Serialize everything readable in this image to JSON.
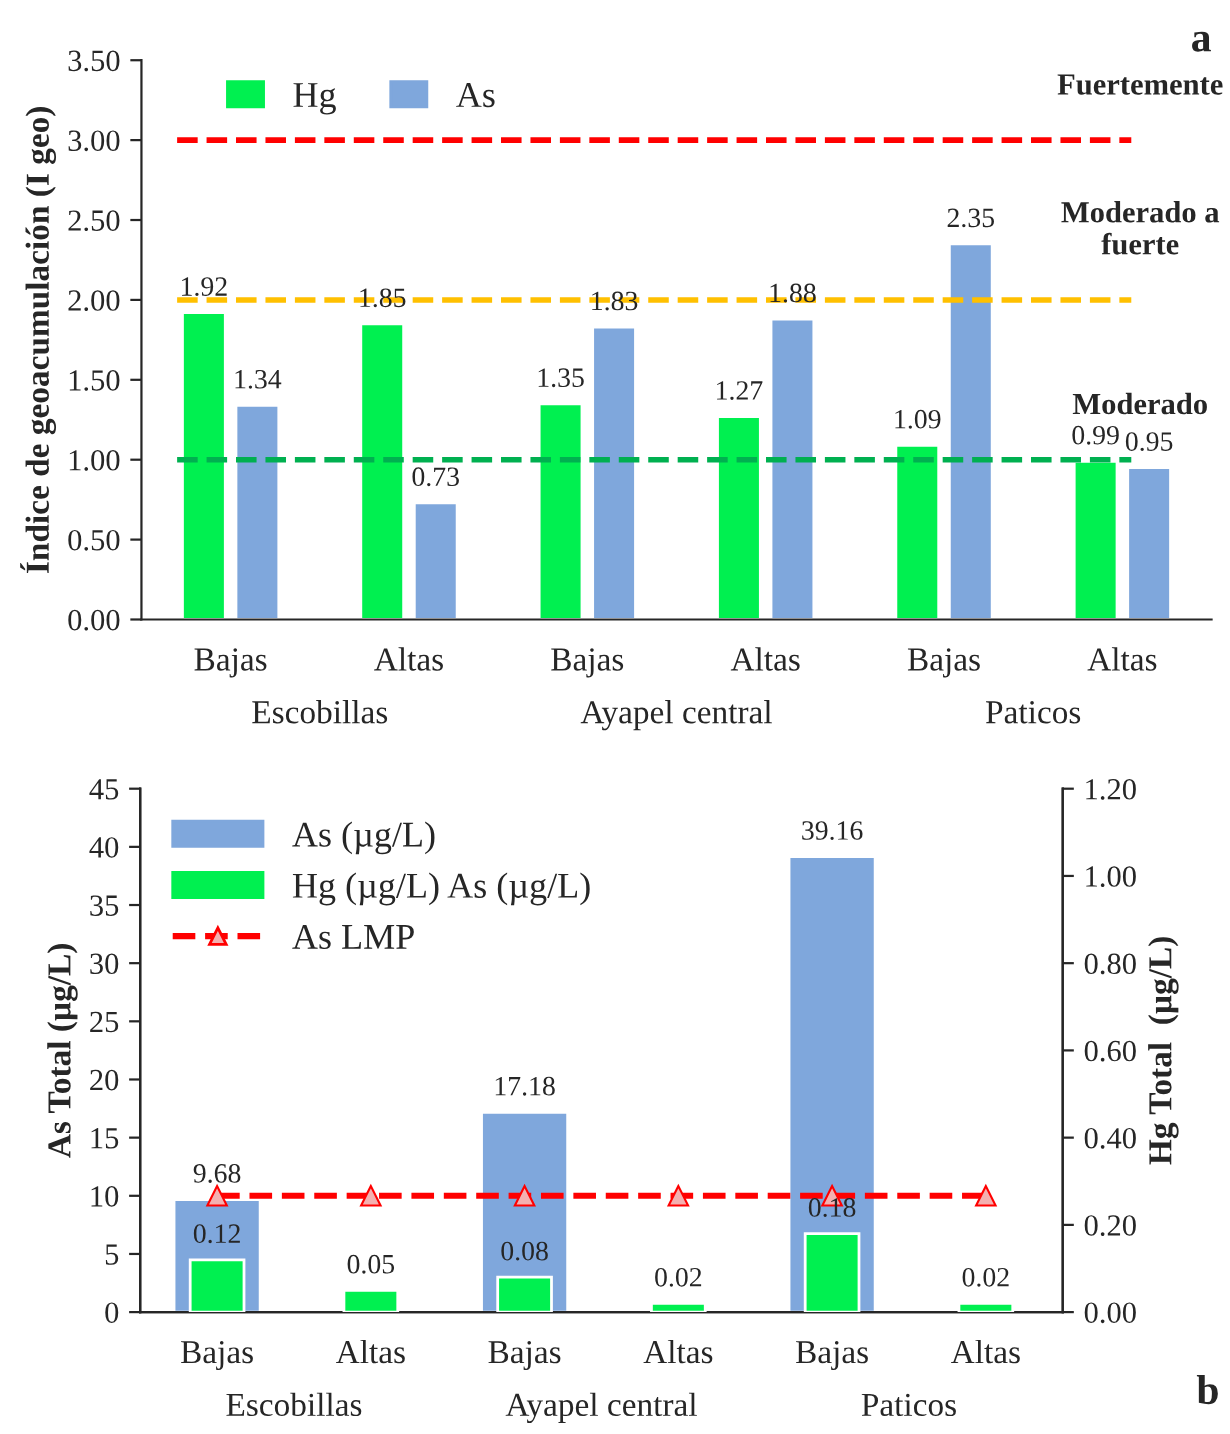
{
  "chart_data": [
    {
      "type": "bar",
      "ylabel": "Índice de geoacumulación (I geo)",
      "categories": [
        "Bajas",
        "Altas",
        "Bajas",
        "Altas",
        "Bajas",
        "Altas"
      ],
      "series": [
        {
          "name": "Hg",
          "color": "#00f050",
          "values": [
            1.92,
            1.85,
            1.35,
            1.27,
            1.09,
            0.99
          ]
        },
        {
          "name": "As",
          "color": "#7fa7dc",
          "values": [
            1.34,
            0.73,
            1.83,
            1.88,
            2.35,
            0.95
          ]
        }
      ],
      "ylim": [
        0,
        3.5
      ],
      "yticks": [
        {
          "value": 0,
          "label": "0.00"
        },
        {
          "value": 0.5,
          "label": "0.50"
        },
        {
          "value": 1,
          "label": "1.00"
        },
        {
          "value": 1.5,
          "label": "1.50"
        },
        {
          "value": 2,
          "label": "2.00"
        },
        {
          "value": 2.5,
          "label": "2.50"
        },
        {
          "value": 3,
          "label": "3.00"
        },
        {
          "value": 3.5,
          "label": "3.50"
        }
      ],
      "ref_lines": [
        {
          "axis": "y",
          "value": 3,
          "label": "Fuertemente",
          "color": "#ff0000",
          "line_style": "dashed"
        },
        {
          "axis": "y",
          "value": 2,
          "label": "Moderado a fuerte",
          "color": "#ffc000",
          "line_style": "dashed"
        },
        {
          "axis": "y",
          "value": 1,
          "label": "Moderado",
          "color": "#00b050",
          "line_style": "dashed"
        }
      ],
      "data_labels": true,
      "legend": "top left",
      "grid": false,
      "annotations": [
        "Escobillas",
        "Ayapel central",
        "Paticos",
        "a"
      ]
    },
    {
      "type": "bar",
      "ylabel": "As Total (µg/L)",
      "y2label": "Hg Total  (µg/L)",
      "categories": [
        "Bajas",
        "Altas",
        "Bajas",
        "Altas",
        "Bajas",
        "Altas"
      ],
      "series": [
        {
          "name": "As (µg/L)",
          "color": "#7fa7dc",
          "values": [
            9.68,
            null,
            17.18,
            null,
            39.16,
            null
          ],
          "value_labels": [
            "9.68",
            null,
            "17.18",
            null,
            "39.16",
            null
          ]
        },
        {
          "name": "Hg (µg/L) As (µg/L)",
          "color": "#00f050",
          "axis": "y2",
          "values": [
            0.12,
            0.05,
            0.08,
            0.02,
            0.18,
            0.02
          ],
          "value_labels": [
            "0.12",
            "0.05",
            "0.08",
            "0.02",
            "0.18",
            "0.02"
          ]
        },
        {
          "name": "As LMP",
          "type": "line",
          "color": "#ff0000",
          "marker": "triangle",
          "line_style": "dashed",
          "values": [
            10,
            10,
            10,
            10,
            10,
            10
          ]
        }
      ],
      "ylim": [
        0,
        45
      ],
      "yticks": [
        0,
        5,
        10,
        15,
        20,
        25,
        30,
        35,
        40,
        45
      ],
      "y2lim": [
        0,
        1.2
      ],
      "y2ticks": [
        {
          "value": 0,
          "label": "0.00"
        },
        {
          "value": 0.2,
          "label": "0.20"
        },
        {
          "value": 0.4,
          "label": "0.40"
        },
        {
          "value": 0.6,
          "label": "0.60"
        },
        {
          "value": 0.8,
          "label": "0.80"
        },
        {
          "value": 1.0,
          "label": "1.00"
        },
        {
          "value": 1.2,
          "label": "1.20"
        }
      ],
      "legend": "top left",
      "grid": false,
      "annotations": [
        "Escobillas",
        "Ayapel central",
        "Paticos",
        "b"
      ]
    }
  ]
}
